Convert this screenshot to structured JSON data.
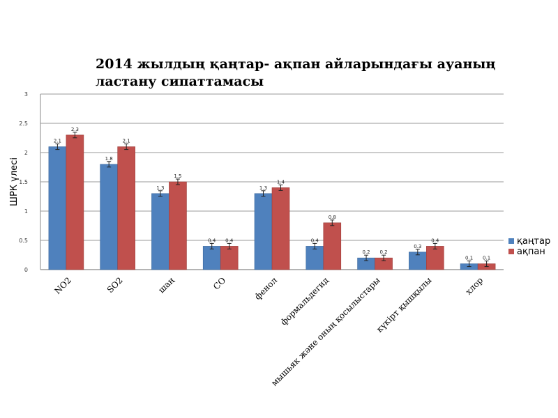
{
  "chart_data": {
    "type": "bar",
    "title": "2014 жылдың қаңтар- ақпан айларындағы ауаның ластану сипаттамасы",
    "xlabel": "",
    "ylabel": "ШРК үлесі",
    "ylim": [
      0,
      3
    ],
    "yticks": [
      "0",
      "0.5",
      "1",
      "1.5",
      "2",
      "2.5",
      "3"
    ],
    "grid": true,
    "legend_position": "right",
    "categories": [
      "NO2",
      "SO2",
      "шаң",
      "CO",
      "фенол",
      "формальдегид",
      "мышьяк және оның қосылыстары",
      "күкірт қышқылы",
      "хлор"
    ],
    "series": [
      {
        "name": "қаңтар",
        "color": "#4f81bd",
        "values": [
          2.1,
          1.8,
          1.3,
          0.4,
          1.3,
          0.4,
          0.2,
          0.3,
          0.1
        ],
        "labels": [
          "2.1",
          "1.8",
          "1.3",
          "0.4",
          "1.3",
          "0.4",
          "0.2",
          "0.3",
          "0.1"
        ]
      },
      {
        "name": "ақпан",
        "color": "#c0504d",
        "values": [
          2.3,
          2.1,
          1.5,
          0.4,
          1.4,
          0.8,
          0.2,
          0.4,
          0.1
        ],
        "labels": [
          "2.3",
          "2.1",
          "1.5",
          "0.4",
          "1.4",
          "0.8",
          "0.2",
          "0.4",
          "0.1"
        ]
      }
    ]
  }
}
